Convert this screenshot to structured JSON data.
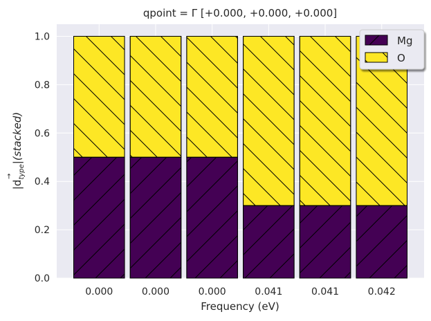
{
  "chart_data": {
    "type": "bar",
    "stacked": true,
    "title": "qpoint = Γ [+0.000, +0.000, +0.000]",
    "xlabel": "Frequency (eV)",
    "ylabel_main": "|d",
    "ylabel_sub": "type",
    "ylabel_rest": "|(stacked)",
    "categories": [
      "0.000",
      "0.000",
      "0.000",
      "0.041",
      "0.041",
      "0.042"
    ],
    "series": [
      {
        "name": "Mg",
        "values": [
          0.5,
          0.5,
          0.5,
          0.3,
          0.3,
          0.3
        ],
        "color": "#440154",
        "hatch": "/"
      },
      {
        "name": "O",
        "values": [
          0.5,
          0.5,
          0.5,
          0.7,
          0.7,
          0.7
        ],
        "color": "#fde725",
        "hatch": "\\"
      }
    ],
    "ylim": [
      0,
      1.05
    ],
    "yticks": [
      "0.0",
      "0.2",
      "0.4",
      "0.6",
      "0.8",
      "1.0"
    ],
    "grid": true,
    "legend_position": "top-right"
  }
}
